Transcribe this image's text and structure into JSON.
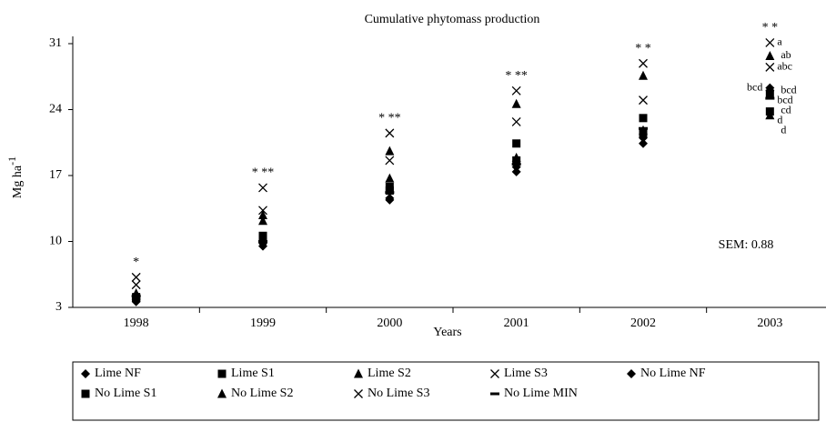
{
  "chart_data": {
    "type": "scatter",
    "title": "Cumulative phytomass production",
    "x_label": "Years",
    "y_label": "Mg ha",
    "y_label_sup": "-1",
    "annotation": "SEM: 0.88",
    "categories": [
      "1998",
      "1999",
      "2000",
      "2001",
      "2002",
      "2003"
    ],
    "significance": [
      "*",
      "* **",
      "* **",
      "* **",
      "* *",
      "* *"
    ],
    "ylim": [
      3,
      31
    ],
    "yticks": [
      3,
      10,
      17,
      24,
      31
    ],
    "series": [
      {
        "name": "Lime NF",
        "color": "#000000",
        "marker": "diamond",
        "values": [
          3.6,
          9.5,
          14.4,
          17.4,
          20.4,
          26.3
        ],
        "letter": "bcd"
      },
      {
        "name": "Lime S1",
        "color": "#000000",
        "marker": "square",
        "values": [
          4.0,
          10.2,
          15.4,
          18.6,
          21.5,
          25.7
        ],
        "letter": "bcd"
      },
      {
        "name": "Lime S2",
        "color": "#000000",
        "marker": "triangle",
        "values": [
          4.3,
          12.2,
          16.7,
          24.6,
          27.6,
          29.7
        ],
        "letter": "ab"
      },
      {
        "name": "Lime S3",
        "color": "#000000",
        "marker": "x",
        "values": [
          6.2,
          15.7,
          21.5,
          26.0,
          28.9,
          31.1
        ],
        "letter": "a"
      },
      {
        "name": "No Lime NF",
        "color": "#000000",
        "marker": "diamond",
        "values": [
          3.8,
          9.8,
          14.6,
          17.9,
          21.0,
          26.0
        ],
        "letter": "bcd"
      },
      {
        "name": "No Lime S1",
        "color": "#000000",
        "marker": "square",
        "values": [
          4.1,
          10.6,
          15.8,
          20.4,
          23.1,
          23.8
        ],
        "letter": "d"
      },
      {
        "name": "No Lime S2",
        "color": "#000000",
        "marker": "triangle",
        "values": [
          4.5,
          12.8,
          19.6,
          18.9,
          21.8,
          23.4
        ],
        "letter": "d"
      },
      {
        "name": "No Lime S3",
        "color": "#000000",
        "marker": "x",
        "values": [
          5.4,
          13.3,
          18.6,
          22.7,
          25.0,
          28.5
        ],
        "letter": "abc"
      },
      {
        "name": "No Lime MIN",
        "color": "#000000",
        "marker": "dash",
        "values": [
          4.2,
          10.0,
          15.2,
          18.2,
          22.0,
          25.2
        ],
        "letter": "cd"
      }
    ]
  }
}
